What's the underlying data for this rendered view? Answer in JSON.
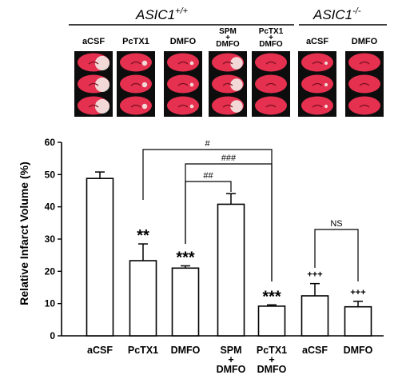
{
  "header": {
    "wt_label": "ASIC1",
    "wt_sup": "+/+",
    "ko_label": "ASIC1",
    "ko_sup": "-/-",
    "groups": [
      {
        "label": "aCSF",
        "genotype": "wt"
      },
      {
        "label": "PcTX1",
        "genotype": "wt"
      },
      {
        "label": "DMFO",
        "genotype": "wt"
      },
      {
        "label": "SPM\n+\nDMFO",
        "genotype": "wt"
      },
      {
        "label": "PcTX1\n+\nDMFO",
        "genotype": "wt"
      },
      {
        "label": "aCSF",
        "genotype": "ko"
      },
      {
        "label": "DMFO",
        "genotype": "ko"
      }
    ],
    "slice_colors": {
      "background": "#0d0d0d",
      "tissue": "#e5304f",
      "infarct": "#f3ece6"
    }
  },
  "chart_data": {
    "type": "bar",
    "categories": [
      "aCSF",
      "PcTX1",
      "DMFO",
      "SPM\n+\nDMFO",
      "PcTX1\n+\nDMFO",
      "aCSF",
      "DMFO"
    ],
    "values": [
      48.8,
      23.3,
      21.0,
      40.8,
      9.2,
      12.4,
      9.0
    ],
    "errors": [
      2.0,
      5.2,
      0.7,
      3.3,
      0.4,
      3.8,
      1.7
    ],
    "ylabel": "Relative Infarct Volume (%)",
    "ylim": [
      0,
      60
    ],
    "yticks": [
      0,
      10,
      20,
      30,
      40,
      50,
      60
    ],
    "bar_fill": "#ffffff",
    "bar_stroke": "#000000",
    "significance": [
      {
        "index": 1,
        "label": "**"
      },
      {
        "index": 2,
        "label": "***"
      },
      {
        "index": 4,
        "label": "***"
      },
      {
        "index": 5,
        "label": "+++"
      },
      {
        "index": 6,
        "label": "+++"
      }
    ],
    "brackets": [
      {
        "from": 1,
        "to": 4,
        "label": "#"
      },
      {
        "from": 2,
        "to": 4,
        "label": "###"
      },
      {
        "from": 2,
        "to": 3,
        "label": "##"
      },
      {
        "from": 5,
        "to": 6,
        "label": "NS"
      }
    ]
  }
}
